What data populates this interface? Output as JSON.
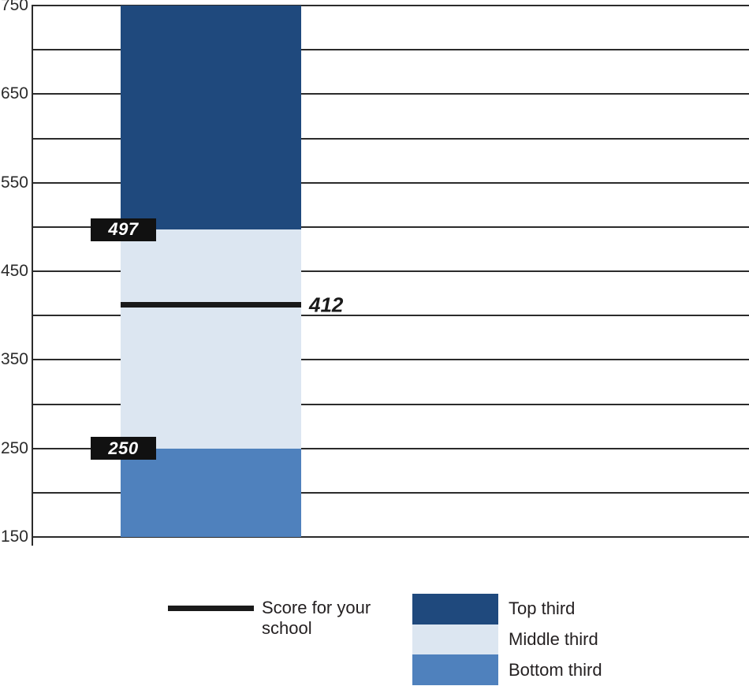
{
  "chart_data": {
    "type": "stacked-bar",
    "title": "",
    "y_axis": {
      "min": 150,
      "max": 750,
      "gridline_step": 50,
      "label_step": 100,
      "tick_labels": [
        "750",
        "650",
        "550",
        "450",
        "350",
        "250",
        "150"
      ]
    },
    "segments": [
      {
        "name": "Bottom third",
        "from": 150,
        "to": 250,
        "color": "#4F81BD"
      },
      {
        "name": "Middle third",
        "from": 250,
        "to": 497,
        "color": "#DCE6F1"
      },
      {
        "name": "Top third",
        "from": 497,
        "to": 750,
        "color": "#1F497D"
      }
    ],
    "boundary_labels": [
      {
        "value": 497,
        "text": "497"
      },
      {
        "value": 250,
        "text": "250"
      }
    ],
    "score_line": {
      "value": 412,
      "text": "412"
    },
    "legend": {
      "line_item": {
        "label": "Score for your school"
      },
      "swatch_items": [
        {
          "label": "Top third",
          "color": "#1F497D"
        },
        {
          "label": "Middle third",
          "color": "#DCE6F1"
        },
        {
          "label": "Bottom third",
          "color": "#4F81BD"
        }
      ]
    },
    "colors": {
      "grid": "#2B2B2B",
      "axis": "#2B2B2B",
      "tick_text": "#2B2B2B",
      "score_line": "#1A1A1A",
      "callout_bg": "#111111",
      "callout_text": "#FFFFFF"
    },
    "layout_hints": {
      "grid": "on",
      "legend_position": "bottom"
    }
  }
}
